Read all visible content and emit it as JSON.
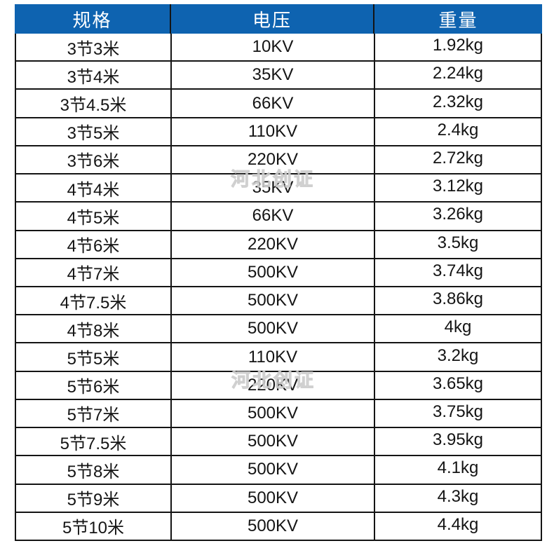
{
  "chart_data": {
    "type": "table",
    "title": "",
    "columns": [
      "规格",
      "电压",
      "重量"
    ],
    "rows": [
      [
        "3节3米",
        "10KV",
        "1.92kg"
      ],
      [
        "3节4米",
        "35KV",
        "2.24kg"
      ],
      [
        "3节4.5米",
        "66KV",
        "2.32kg"
      ],
      [
        "3节5米",
        "110KV",
        "2.4kg"
      ],
      [
        "3节6米",
        "220KV",
        "2.72kg"
      ],
      [
        "4节4米",
        "35KV",
        "3.12kg"
      ],
      [
        "4节5米",
        "66KV",
        "3.26kg"
      ],
      [
        "4节6米",
        "220KV",
        "3.5kg"
      ],
      [
        "4节7米",
        "500KV",
        "3.74kg"
      ],
      [
        "4节7.5米",
        "500KV",
        "3.86kg"
      ],
      [
        "4节8米",
        "500KV",
        "4kg"
      ],
      [
        "5节5米",
        "110KV",
        "3.2kg"
      ],
      [
        "5节6米",
        "220KV",
        "3.65kg"
      ],
      [
        "5节7米",
        "500KV",
        "3.75kg"
      ],
      [
        "5节7.5米",
        "500KV",
        "3.95kg"
      ],
      [
        "5节8米",
        "500KV",
        "4.1kg"
      ],
      [
        "5节9米",
        "500KV",
        "4.3kg"
      ],
      [
        "5节10米",
        "500KV",
        "4.4kg"
      ]
    ]
  },
  "watermark": {
    "text": "河北创证"
  },
  "colors": {
    "header_bg": "#0e63b0",
    "header_text": "#ffffff",
    "grid": "#141414",
    "cell_text": "#141414",
    "page_bg": "#ffffff"
  }
}
